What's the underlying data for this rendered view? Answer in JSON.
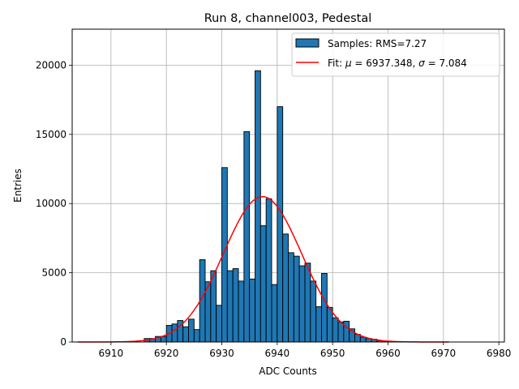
{
  "chart_data": {
    "type": "bar",
    "title": "Run 8, channel003, Pedestal",
    "xlabel": "ADC Counts",
    "ylabel": "Entries",
    "xlim": [
      6903,
      6981
    ],
    "ylim": [
      0,
      22600
    ],
    "xticks": [
      6910,
      6920,
      6930,
      6940,
      6950,
      6960,
      6970,
      6980
    ],
    "yticks": [
      0,
      5000,
      10000,
      15000,
      20000
    ],
    "grid": true,
    "legend_position": "top-right",
    "bar_color": "#1f77b4",
    "fit_color": "#ff0000",
    "bin_width": 1,
    "histogram": {
      "name": "Samples: RMS=7.27",
      "bin_left_edges": [
        6916,
        6917,
        6918,
        6919,
        6920,
        6921,
        6922,
        6923,
        6924,
        6925,
        6926,
        6927,
        6928,
        6929,
        6930,
        6931,
        6932,
        6933,
        6934,
        6935,
        6936,
        6937,
        6938,
        6939,
        6940,
        6941,
        6942,
        6943,
        6944,
        6945,
        6946,
        6947,
        6948,
        6949,
        6950,
        6951,
        6952,
        6953,
        6954,
        6955,
        6956,
        6957,
        6958,
        6959
      ],
      "counts": [
        250,
        250,
        400,
        400,
        1200,
        1300,
        1550,
        1100,
        1650,
        900,
        5950,
        4350,
        5150,
        2650,
        12600,
        5150,
        5300,
        4400,
        15200,
        4550,
        19600,
        8400,
        10350,
        4150,
        17000,
        7800,
        6450,
        6200,
        5500,
        5700,
        4400,
        2550,
        4950,
        2500,
        1750,
        1450,
        1500,
        950,
        550,
        350,
        250,
        200,
        100,
        50
      ]
    },
    "fit": {
      "name": "Fit: μ = 6937.348, σ = 7.084",
      "mu": 6937.348,
      "sigma": 7.084,
      "amplitude": 10500,
      "x_range": [
        6904,
        6971
      ]
    }
  },
  "legend": {
    "samples_label": "Samples: RMS=7.27",
    "fit_prefix": "Fit: ",
    "fit_mu_sym": "μ",
    "fit_mu_val": " = 6937.348, ",
    "fit_sigma_sym": "σ",
    "fit_sigma_val": " = 7.084"
  }
}
